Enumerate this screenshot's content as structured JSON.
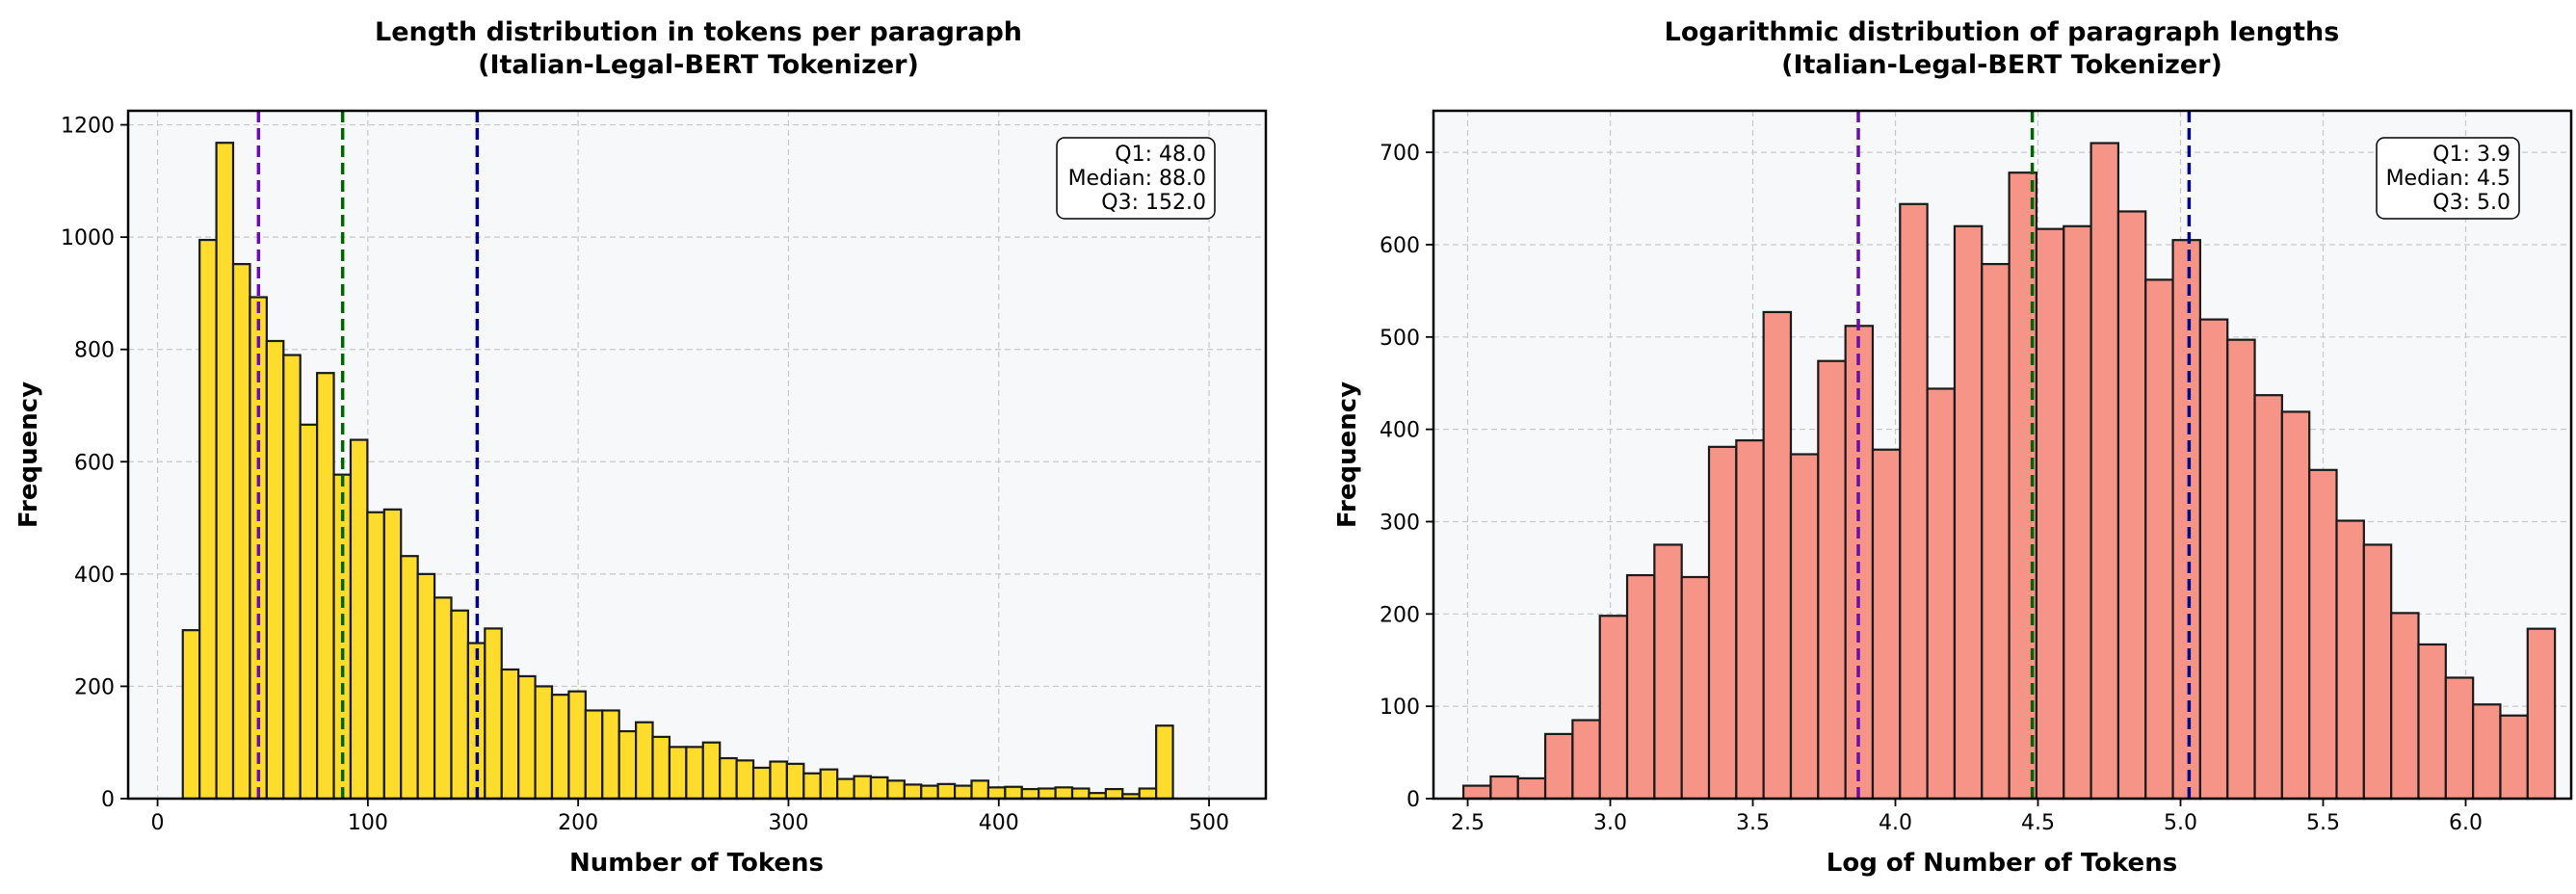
{
  "chart_data": [
    {
      "type": "bar",
      "title_line1": "Length distribution in tokens per paragraph",
      "title_line2": "(Italian-Legal-BERT Tokenizer)",
      "xlabel": "Number of Tokens",
      "ylabel": "Frequency",
      "xlim": [
        -14,
        527
      ],
      "ylim": [
        0,
        1225
      ],
      "xticks": [
        0,
        100,
        200,
        300,
        400,
        500
      ],
      "yticks": [
        0,
        200,
        400,
        600,
        800,
        1000,
        1200
      ],
      "bin_start": 12,
      "bin_width": 7.98,
      "values": [
        300,
        995,
        1168,
        952,
        893,
        815,
        790,
        666,
        758,
        577,
        639,
        510,
        515,
        432,
        400,
        358,
        335,
        277,
        303,
        230,
        218,
        200,
        185,
        191,
        157,
        157,
        120,
        136,
        110,
        92,
        92,
        100,
        72,
        68,
        55,
        66,
        62,
        45,
        52,
        35,
        40,
        38,
        32,
        25,
        23,
        26,
        23,
        32,
        20,
        21,
        17,
        18,
        20,
        18,
        10,
        17,
        8,
        18,
        130
      ],
      "bar_color": "#fddc2c",
      "grid": true,
      "quartiles": [
        {
          "name": "Q1",
          "x": 48,
          "color": "#6a0dad"
        },
        {
          "name": "Median",
          "x": 88,
          "color": "#006400"
        },
        {
          "name": "Q3",
          "x": 152,
          "color": "#00008b"
        }
      ],
      "stats_box": [
        "Q1: 48.0",
        "Median: 88.0",
        "Q3: 152.0"
      ],
      "stats_box_placement": "top-right"
    },
    {
      "type": "bar",
      "title_line1": "Logarithmic distribution of paragraph lengths",
      "title_line2": "(Italian-Legal-BERT Tokenizer)",
      "xlabel": "Log of Number of Tokens",
      "ylabel": "Frequency",
      "xlim": [
        2.38,
        6.37
      ],
      "ylim": [
        0,
        745
      ],
      "xticks": [
        2.5,
        3.0,
        3.5,
        4.0,
        4.5,
        5.0,
        5.5,
        6.0
      ],
      "xtick_labels": [
        "2.5",
        "3.0",
        "3.5",
        "4.0",
        "4.5",
        "5.0",
        "5.5",
        "6.0"
      ],
      "yticks": [
        0,
        100,
        200,
        300,
        400,
        500,
        600,
        700
      ],
      "bin_start": 2.485,
      "bin_width": 0.0957,
      "values": [
        14,
        24,
        22,
        70,
        85,
        198,
        242,
        275,
        240,
        381,
        388,
        527,
        373,
        474,
        512,
        378,
        644,
        444,
        620,
        579,
        678,
        617,
        620,
        710,
        636,
        562,
        605,
        519,
        497,
        437,
        419,
        356,
        301,
        275,
        201,
        167,
        131,
        102,
        90,
        184
      ],
      "bar_color": "#f79488",
      "grid": true,
      "quartiles": [
        {
          "name": "Q1",
          "x": 3.87,
          "color": "#6a0dad"
        },
        {
          "name": "Median",
          "x": 4.48,
          "color": "#006400"
        },
        {
          "name": "Q3",
          "x": 5.03,
          "color": "#00008b"
        }
      ],
      "stats_box": [
        "Q1: 3.9",
        "Median: 4.5",
        "Q3: 5.0"
      ],
      "stats_box_placement": "top-right"
    }
  ]
}
